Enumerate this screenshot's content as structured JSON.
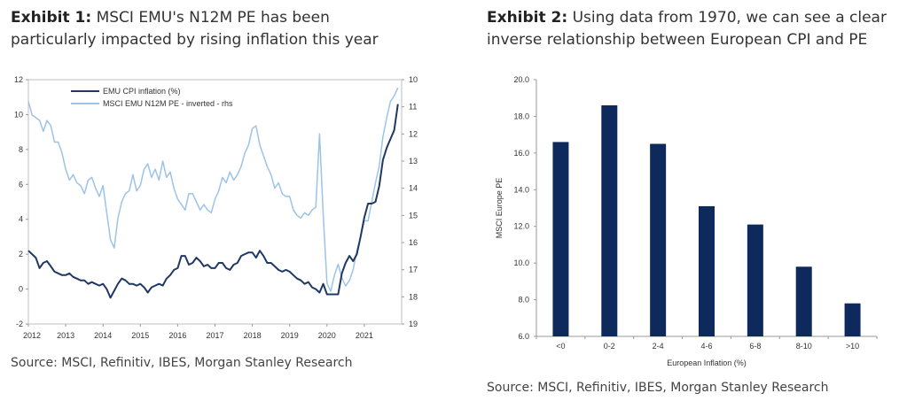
{
  "exhibit1": {
    "title_bold": "Exhibit 1:",
    "title_text": " MSCI EMU's N12M PE has been particularly impacted by rising inflation this year",
    "source": "Source: MSCI, Refinitiv, IBES, Morgan Stanley Research"
  },
  "exhibit2": {
    "title_bold": "Exhibit 2:",
    "title_text": " Using data from 1970, we can see a clear inverse relationship between European CPI and PE",
    "source": "Source: MSCI, Refinitiv, IBES, Morgan Stanley Research"
  },
  "colors": {
    "cpi": "#1f3864",
    "pe": "#9dc3e6",
    "bar": "#0e2a5c"
  },
  "chart_data": [
    {
      "type": "line",
      "x_ticks": [
        "2012",
        "2013",
        "2014",
        "2015",
        "2016",
        "2017",
        "2018",
        "2019",
        "2020",
        "2021"
      ],
      "xlim": [
        2012,
        2022
      ],
      "ylim_left": [
        -2,
        12
      ],
      "y_ticks_left": [
        -2,
        0,
        2,
        4,
        6,
        8,
        10,
        12
      ],
      "ylim_right_inverted": [
        10,
        19
      ],
      "y_ticks_right": [
        10,
        11,
        12,
        13,
        14,
        15,
        16,
        17,
        18,
        19
      ],
      "legend_placement": "top-left",
      "series": [
        {
          "name": "EMU CPI inflation (%)",
          "axis": "left",
          "x": [
            2012.0,
            2012.1,
            2012.2,
            2012.3,
            2012.4,
            2012.5,
            2012.6,
            2012.7,
            2012.8,
            2012.9,
            2013.0,
            2013.1,
            2013.2,
            2013.3,
            2013.4,
            2013.5,
            2013.6,
            2013.7,
            2013.8,
            2013.9,
            2014.0,
            2014.1,
            2014.2,
            2014.3,
            2014.4,
            2014.5,
            2014.6,
            2014.7,
            2014.8,
            2014.9,
            2015.0,
            2015.1,
            2015.2,
            2015.3,
            2015.4,
            2015.5,
            2015.6,
            2015.7,
            2015.8,
            2015.9,
            2016.0,
            2016.1,
            2016.2,
            2016.3,
            2016.4,
            2016.5,
            2016.6,
            2016.7,
            2016.8,
            2016.9,
            2017.0,
            2017.1,
            2017.2,
            2017.3,
            2017.4,
            2017.5,
            2017.6,
            2017.7,
            2017.8,
            2017.9,
            2018.0,
            2018.1,
            2018.2,
            2018.3,
            2018.4,
            2018.5,
            2018.6,
            2018.7,
            2018.8,
            2018.9,
            2019.0,
            2019.1,
            2019.2,
            2019.3,
            2019.4,
            2019.5,
            2019.6,
            2019.7,
            2019.8,
            2019.9,
            2020.0,
            2020.1,
            2020.2,
            2020.3,
            2020.4,
            2020.5,
            2020.6,
            2020.7,
            2020.8,
            2020.9,
            2021.0,
            2021.1,
            2021.2,
            2021.3,
            2021.4,
            2021.5,
            2021.6,
            2021.7,
            2021.8,
            2021.9
          ],
          "values": [
            2.2,
            2.0,
            1.8,
            1.2,
            1.5,
            1.6,
            1.3,
            1.0,
            0.9,
            0.8,
            0.8,
            0.9,
            0.7,
            0.6,
            0.5,
            0.5,
            0.3,
            0.4,
            0.3,
            0.2,
            0.3,
            0.0,
            -0.5,
            -0.1,
            0.3,
            0.6,
            0.5,
            0.3,
            0.3,
            0.2,
            0.3,
            0.1,
            -0.2,
            0.1,
            0.2,
            0.3,
            0.2,
            0.6,
            0.8,
            1.1,
            1.2,
            1.9,
            1.9,
            1.4,
            1.5,
            1.8,
            1.6,
            1.3,
            1.4,
            1.2,
            1.2,
            1.5,
            1.5,
            1.2,
            1.1,
            1.4,
            1.5,
            1.9,
            2.0,
            2.1,
            2.1,
            1.8,
            2.2,
            1.9,
            1.5,
            1.5,
            1.3,
            1.1,
            1.0,
            1.1,
            1.0,
            0.8,
            0.6,
            0.5,
            0.3,
            0.4,
            0.1,
            0.0,
            -0.2,
            0.3,
            -0.3,
            -0.3,
            -0.3,
            -0.3,
            0.9,
            1.5,
            1.9,
            1.6,
            2.0,
            3.0,
            4.1,
            4.9,
            4.9,
            5.0,
            5.9,
            7.4,
            8.1,
            8.6,
            9.1,
            10.6
          ]
        },
        {
          "name": "MSCI EMU N12M PE - inverted - rhs",
          "axis": "right",
          "x": [
            2012.0,
            2012.1,
            2012.2,
            2012.3,
            2012.4,
            2012.5,
            2012.6,
            2012.7,
            2012.8,
            2012.9,
            2013.0,
            2013.1,
            2013.2,
            2013.3,
            2013.4,
            2013.5,
            2013.6,
            2013.7,
            2013.8,
            2013.9,
            2014.0,
            2014.1,
            2014.2,
            2014.3,
            2014.4,
            2014.5,
            2014.6,
            2014.7,
            2014.8,
            2014.9,
            2015.0,
            2015.1,
            2015.2,
            2015.3,
            2015.4,
            2015.5,
            2015.6,
            2015.7,
            2015.8,
            2015.9,
            2016.0,
            2016.1,
            2016.2,
            2016.3,
            2016.4,
            2016.5,
            2016.6,
            2016.7,
            2016.8,
            2016.9,
            2017.0,
            2017.1,
            2017.2,
            2017.3,
            2017.4,
            2017.5,
            2017.6,
            2017.7,
            2017.8,
            2017.9,
            2018.0,
            2018.1,
            2018.2,
            2018.3,
            2018.4,
            2018.5,
            2018.6,
            2018.7,
            2018.8,
            2018.9,
            2019.0,
            2019.1,
            2019.2,
            2019.3,
            2019.4,
            2019.5,
            2019.6,
            2019.7,
            2019.8,
            2019.9,
            2020.0,
            2020.1,
            2020.2,
            2020.3,
            2020.4,
            2020.5,
            2020.6,
            2020.7,
            2020.8,
            2020.9,
            2021.0,
            2021.1,
            2021.2,
            2021.3,
            2021.4,
            2021.5,
            2021.6,
            2021.7,
            2021.8,
            2021.9
          ],
          "values": [
            10.8,
            11.3,
            11.4,
            11.5,
            11.9,
            11.5,
            11.7,
            12.3,
            12.3,
            12.7,
            13.3,
            13.7,
            13.5,
            13.8,
            13.9,
            14.2,
            13.7,
            13.6,
            14.0,
            14.3,
            13.9,
            14.9,
            15.9,
            16.2,
            15.1,
            14.5,
            14.2,
            14.1,
            13.5,
            14.1,
            13.9,
            13.3,
            13.1,
            13.6,
            13.3,
            13.7,
            13.0,
            13.6,
            13.4,
            14.0,
            14.4,
            14.6,
            14.8,
            14.2,
            14.2,
            14.5,
            14.8,
            14.6,
            14.8,
            14.9,
            14.4,
            14.1,
            13.6,
            13.8,
            13.4,
            13.7,
            13.5,
            13.2,
            12.7,
            12.4,
            11.8,
            11.7,
            12.4,
            12.8,
            13.2,
            13.5,
            14.0,
            13.8,
            14.2,
            14.3,
            14.3,
            14.8,
            15.0,
            15.1,
            14.9,
            15.0,
            14.8,
            14.7,
            12.0,
            15.0,
            17.5,
            17.8,
            17.2,
            16.8,
            17.3,
            17.6,
            17.4,
            17.0,
            16.3,
            15.8,
            15.2,
            15.2,
            14.5,
            13.8,
            13.2,
            12.1,
            11.4,
            10.8,
            10.6,
            10.3
          ]
        }
      ]
    },
    {
      "type": "bar",
      "categories": [
        "<0",
        "0-2",
        "2-4",
        "4-6",
        "6-8",
        "8-10",
        ">10"
      ],
      "values": [
        16.6,
        18.6,
        16.5,
        13.1,
        12.1,
        9.8,
        7.8
      ],
      "xlabel": "European Inflation (%)",
      "ylabel": "MSCI Europe PE",
      "ylim": [
        6.0,
        20.0
      ],
      "y_ticks": [
        "6.0",
        "8.0",
        "10.0",
        "12.0",
        "14.0",
        "16.0",
        "18.0",
        "20.0"
      ]
    }
  ]
}
